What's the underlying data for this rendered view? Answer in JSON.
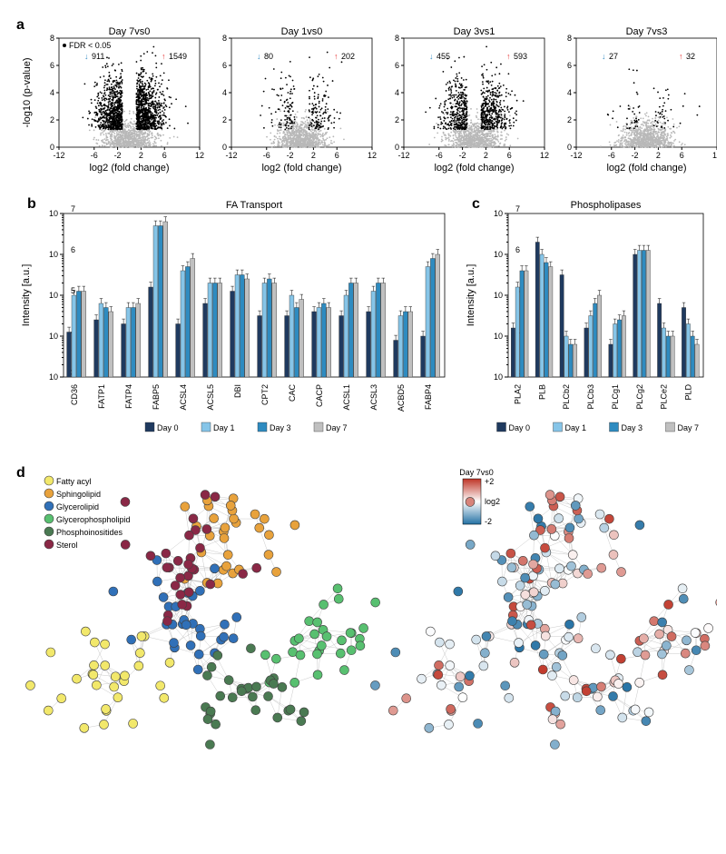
{
  "panelA": {
    "label": "a",
    "type": "scatter",
    "fdr_label": "FDR < 0.05",
    "xlabel": "log2 (fold change)",
    "ylabel": "-log10 (p-value)",
    "xlim": [
      -12,
      12
    ],
    "xticks": [
      -12,
      -6,
      -2,
      2,
      6,
      12
    ],
    "ylim": [
      0,
      8
    ],
    "yticks": [
      0,
      2,
      4,
      6,
      8
    ],
    "sig_color": "#000000",
    "nonsig_color": "#b8b8b8",
    "down_color": "#3b8fc4",
    "up_color": "#e63939",
    "plots": [
      {
        "title": "Day 7vs0",
        "down": 911,
        "up": 1549,
        "density": 1.0
      },
      {
        "title": "Day 1vs0",
        "down": 80,
        "up": 202,
        "density": 0.15
      },
      {
        "title": "Day 3vs1",
        "down": 455,
        "up": 593,
        "density": 0.5
      },
      {
        "title": "Day 7vs3",
        "down": 27,
        "up": 32,
        "density": 0.05
      }
    ]
  },
  "panelB": {
    "label": "b",
    "type": "bar",
    "title": "FA Transport",
    "ylabel": "Intensity [a.u.]",
    "ylim_exp": [
      3,
      7
    ],
    "colors": [
      "#1f3a5f",
      "#86c5e8",
      "#2e8bc0",
      "#c0c0c0"
    ],
    "legend": [
      "Day 0",
      "Day 1",
      "Day 3",
      "Day 7"
    ],
    "categories": [
      "CD36",
      "FATP1",
      "FATP4",
      "FABP5",
      "ACSL4",
      "ACSL5",
      "DBI",
      "CPT2",
      "CAC",
      "CACP",
      "ACSL1",
      "ACSL3",
      "ACBD5",
      "FABP4"
    ],
    "data": [
      [
        4.1,
        5.0,
        5.1,
        5.1
      ],
      [
        4.4,
        4.8,
        4.7,
        4.6
      ],
      [
        4.3,
        4.7,
        4.7,
        4.8
      ],
      [
        5.2,
        6.7,
        6.7,
        6.8
      ],
      [
        4.3,
        5.6,
        5.7,
        5.9
      ],
      [
        4.8,
        5.3,
        5.3,
        5.3
      ],
      [
        5.1,
        5.5,
        5.5,
        5.4
      ],
      [
        4.5,
        5.3,
        5.4,
        5.3
      ],
      [
        4.5,
        5.0,
        4.7,
        4.9
      ],
      [
        4.6,
        4.7,
        4.8,
        4.7
      ],
      [
        4.5,
        5.0,
        5.3,
        5.3
      ],
      [
        4.6,
        5.1,
        5.3,
        5.3
      ],
      [
        3.9,
        4.5,
        4.6,
        4.6
      ],
      [
        4.0,
        5.7,
        5.9,
        6.0
      ]
    ]
  },
  "panelC": {
    "label": "c",
    "type": "bar",
    "title": "Phospholipases",
    "ylabel": "Intensity [a.u.]",
    "ylim_exp": [
      3,
      7
    ],
    "colors": [
      "#1f3a5f",
      "#86c5e8",
      "#2e8bc0",
      "#c0c0c0"
    ],
    "legend": [
      "Day 0",
      "Day 1",
      "Day 3",
      "Day 7"
    ],
    "categories": [
      "PLA2",
      "PLB",
      "PLCb2",
      "PLCb3",
      "PLCg1",
      "PLCg2",
      "PLCe2",
      "PLD"
    ],
    "data": [
      [
        4.2,
        5.2,
        5.6,
        5.6
      ],
      [
        6.3,
        6.0,
        5.8,
        5.7
      ],
      [
        5.5,
        4.0,
        3.8,
        3.8
      ],
      [
        4.2,
        4.5,
        4.8,
        5.0
      ],
      [
        3.8,
        4.3,
        4.4,
        4.5
      ],
      [
        6.0,
        6.1,
        6.1,
        6.1
      ],
      [
        4.8,
        4.2,
        4.0,
        4.0
      ],
      [
        4.7,
        4.3,
        4.0,
        3.8
      ]
    ]
  },
  "panelD": {
    "label": "d",
    "type": "network",
    "categories": [
      {
        "label": "Fatty acyl",
        "color": "#f2e86b"
      },
      {
        "label": "Sphingolipid",
        "color": "#e8a23c"
      },
      {
        "label": "Glycerolipid",
        "color": "#3070b8"
      },
      {
        "label": "Glycerophospholipid",
        "color": "#58c070"
      },
      {
        "label": "Phosphoinositides",
        "color": "#4a7a52"
      },
      {
        "label": "Sterol",
        "color": "#8a2846"
      }
    ],
    "heatmap": {
      "title": "Day 7vs0",
      "label": "log2",
      "max": "+2",
      "min": "-2",
      "colors": [
        "#c0392b",
        "#ffffff",
        "#2874a6"
      ]
    },
    "node_count": 180,
    "edge_color": "#909090",
    "node_stroke": "#404040"
  }
}
